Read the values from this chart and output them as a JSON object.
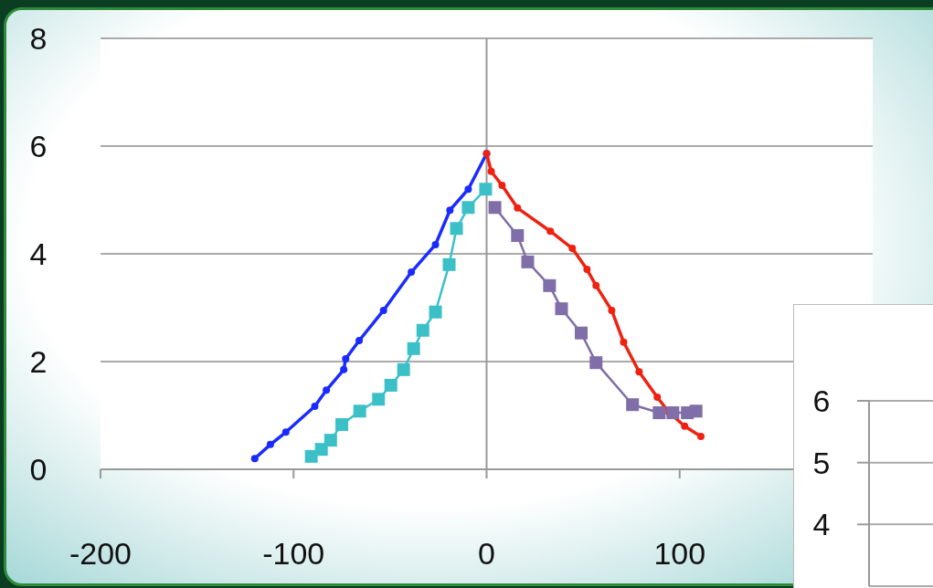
{
  "chart_data": [
    {
      "type": "line",
      "xlim": [
        -200,
        200
      ],
      "xticks": [
        -200,
        -100,
        0,
        100
      ],
      "ylim": [
        0,
        8
      ],
      "yticks": [
        0,
        2,
        4,
        6,
        8
      ],
      "grid": "y",
      "series": [
        {
          "color": "#1a2bff",
          "marker": "circle",
          "x": [
            -120.1,
            -112,
            -104,
            -89,
            -83,
            -74,
            -73,
            -66,
            -53.4,
            -39,
            -26.5,
            -19,
            -9.5,
            0
          ],
          "values": [
            0.2,
            0.46,
            0.69,
            1.17,
            1.47,
            1.85,
            2.05,
            2.39,
            2.95,
            3.66,
            4.17,
            4.81,
            5.2,
            5.86
          ]
        },
        {
          "color": "#3cc0c8",
          "marker": "square",
          "x": [
            -90.8,
            -85.6,
            -80.8,
            -75,
            -65.7,
            -56,
            -49.6,
            -43,
            -37.8,
            -33,
            -26.5,
            -19.4,
            -15.6,
            -9.5,
            -0.5
          ],
          "values": [
            0.24,
            0.37,
            0.54,
            0.83,
            1.08,
            1.3,
            1.56,
            1.85,
            2.24,
            2.58,
            2.92,
            3.8,
            4.47,
            4.86,
            5.2
          ]
        },
        {
          "color": "#ee2211",
          "marker": "circle",
          "x": [
            0,
            2.4,
            8,
            16,
            33,
            44.4,
            52,
            56.7,
            64.8,
            71,
            79,
            88.4,
            94.6,
            102.6,
            111
          ],
          "values": [
            5.86,
            5.53,
            5.27,
            4.85,
            4.42,
            4.1,
            3.71,
            3.41,
            2.95,
            2.36,
            1.81,
            1.34,
            1.05,
            0.8,
            0.61
          ]
        },
        {
          "color": "#7f6ea8",
          "marker": "square",
          "x": [
            4.3,
            16,
            21.3,
            32.6,
            38.8,
            49,
            56.7,
            75.6,
            89.4,
            96.5,
            104,
            108.5
          ],
          "values": [
            4.86,
            4.34,
            3.85,
            3.41,
            2.98,
            2.53,
            1.98,
            1.2,
            1.05,
            1.05,
            1.05,
            1.08
          ]
        }
      ]
    },
    {
      "type": "line",
      "categories": [
        null
      ],
      "values": [
        null
      ],
      "ylim": [
        3,
        6
      ],
      "yticks": [
        4,
        5,
        6
      ],
      "grid": "y",
      "tick_labels": "y"
    }
  ]
}
